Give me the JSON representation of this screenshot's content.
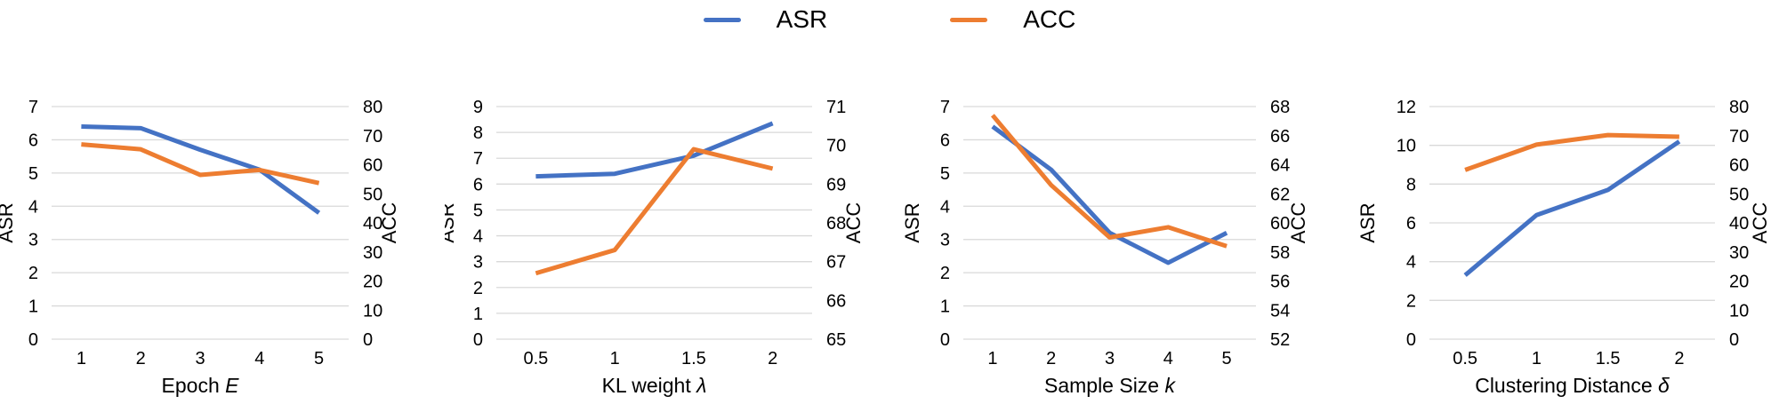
{
  "figure": {
    "background": "#ffffff"
  },
  "colors": {
    "asr": "#4472c4",
    "acc": "#ed7d31",
    "gridline": "#d9d9d9",
    "text": "#000000"
  },
  "legend": {
    "position": "top-center",
    "items": [
      {
        "label": "ASR",
        "color": "#4472c4"
      },
      {
        "label": "ACC",
        "color": "#ed7d31"
      }
    ]
  },
  "chart_data": [
    {
      "type": "line",
      "title": "",
      "xlabel": "Epoch E",
      "xlabel_base": "Epoch",
      "xlabel_symbol": "E",
      "categories": [
        "1",
        "2",
        "3",
        "4",
        "5"
      ],
      "left_axis": {
        "label": "ASR",
        "min": 0,
        "max": 7,
        "step": 1
      },
      "right_axis": {
        "label": "ACC",
        "min": 0,
        "max": 80,
        "step": 10
      },
      "grid": true,
      "series": [
        {
          "name": "ASR",
          "axis": "left",
          "color": "#4472c4",
          "values": [
            6.4,
            6.35,
            5.7,
            5.1,
            3.8
          ]
        },
        {
          "name": "ACC",
          "axis": "right",
          "color": "#ed7d31",
          "values": [
            67.0,
            65.3,
            56.5,
            58.2,
            53.7
          ]
        }
      ]
    },
    {
      "type": "line",
      "title": "",
      "xlabel": "KL weight λ",
      "xlabel_base": "KL weight",
      "xlabel_symbol": "λ",
      "categories": [
        "0.5",
        "1",
        "1.5",
        "2"
      ],
      "left_axis": {
        "label": "ASR",
        "min": 0,
        "max": 9,
        "step": 1
      },
      "right_axis": {
        "label": "ACC",
        "min": 65,
        "max": 71,
        "step": 1
      },
      "grid": true,
      "series": [
        {
          "name": "ASR",
          "axis": "left",
          "color": "#4472c4",
          "values": [
            6.3,
            6.4,
            7.1,
            8.35
          ]
        },
        {
          "name": "ACC",
          "axis": "right",
          "color": "#ed7d31",
          "values": [
            66.7,
            67.3,
            69.9,
            69.4
          ]
        }
      ]
    },
    {
      "type": "line",
      "title": "",
      "xlabel": "Sample Size k",
      "xlabel_base": "Sample Size",
      "xlabel_symbol": "k",
      "categories": [
        "1",
        "2",
        "3",
        "4",
        "5"
      ],
      "left_axis": {
        "label": "ASR",
        "min": 0,
        "max": 7,
        "step": 1
      },
      "right_axis": {
        "label": "ACC",
        "min": 52,
        "max": 68,
        "step": 2
      },
      "grid": true,
      "series": [
        {
          "name": "ASR",
          "axis": "left",
          "color": "#4472c4",
          "values": [
            6.4,
            5.1,
            3.2,
            2.3,
            3.2
          ]
        },
        {
          "name": "ACC",
          "axis": "right",
          "color": "#ed7d31",
          "values": [
            67.4,
            62.6,
            59.0,
            59.7,
            58.4
          ]
        }
      ]
    },
    {
      "type": "line",
      "title": "",
      "xlabel": "Clustering Distance δ",
      "xlabel_base": "Clustering Distance",
      "xlabel_symbol": "δ",
      "categories": [
        "0.5",
        "1",
        "1.5",
        "2"
      ],
      "left_axis": {
        "label": "ASR",
        "min": 0,
        "max": 12,
        "step": 2
      },
      "right_axis": {
        "label": "ACC",
        "min": 0,
        "max": 80,
        "step": 10
      },
      "grid": true,
      "series": [
        {
          "name": "ASR",
          "axis": "left",
          "color": "#4472c4",
          "values": [
            3.3,
            6.4,
            7.7,
            10.2
          ]
        },
        {
          "name": "ACC",
          "axis": "right",
          "color": "#ed7d31",
          "values": [
            58.2,
            66.9,
            70.2,
            69.6
          ]
        }
      ]
    }
  ]
}
